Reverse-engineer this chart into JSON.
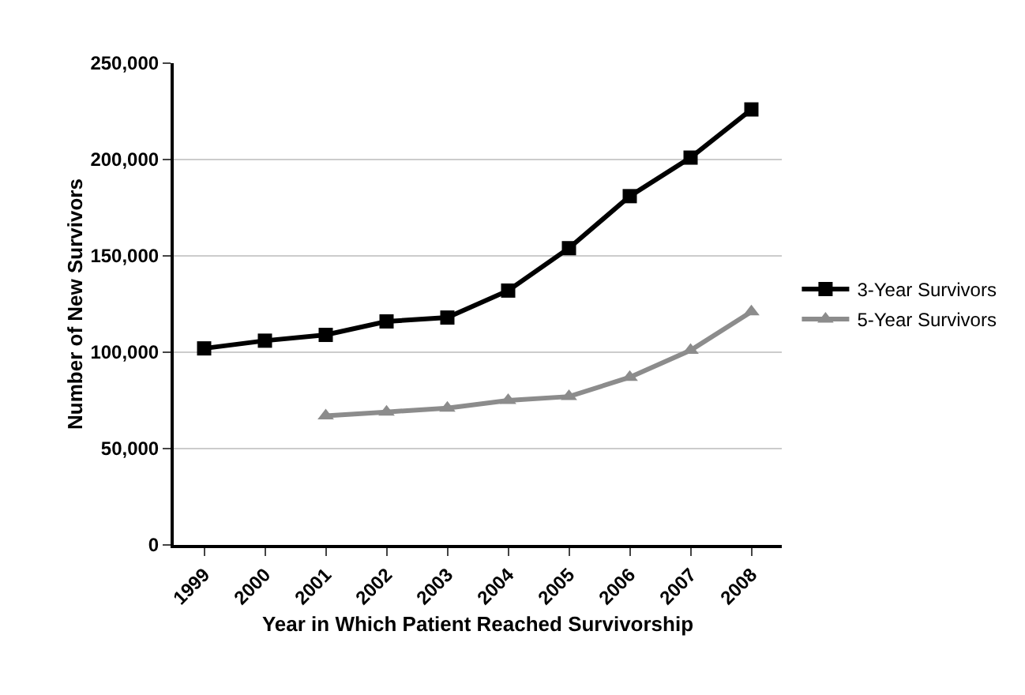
{
  "chart_data": {
    "type": "line",
    "xlabel": "Year in Which Patient Reached Survivorship",
    "ylabel": "Number of New Survivors",
    "categories": [
      "1999",
      "2000",
      "2001",
      "2002",
      "2003",
      "2004",
      "2005",
      "2006",
      "2007",
      "2008"
    ],
    "series": [
      {
        "name": "3-Year Survivors",
        "color": "#000000",
        "marker": "square",
        "values": [
          102000,
          106000,
          109000,
          116000,
          118000,
          132000,
          154000,
          181000,
          201000,
          226000
        ]
      },
      {
        "name": "5-Year Survivors",
        "color": "#8c8c8c",
        "marker": "triangle",
        "values": [
          null,
          null,
          67000,
          69000,
          71000,
          75000,
          77000,
          87000,
          101000,
          121000
        ]
      }
    ],
    "ylim": [
      0,
      250000
    ],
    "yticks": [
      {
        "value": 0,
        "label": "0"
      },
      {
        "value": 50000,
        "label": "50,000"
      },
      {
        "value": 100000,
        "label": "100,000"
      },
      {
        "value": 150000,
        "label": "150,000"
      },
      {
        "value": 200000,
        "label": "200,000"
      },
      {
        "value": 250000,
        "label": "250,000"
      }
    ],
    "grid": "y",
    "legend": "right",
    "line_style": "solid"
  }
}
